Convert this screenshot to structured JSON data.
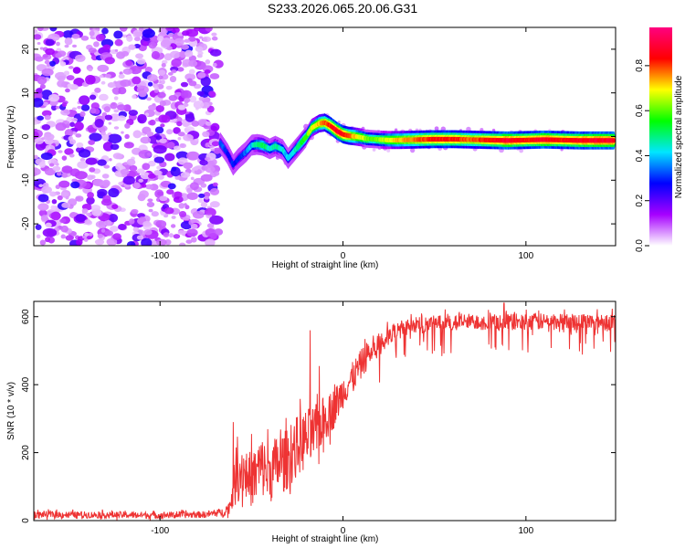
{
  "title": "S233.2026.065.20.06.G31",
  "chart_data": [
    {
      "type": "heatmap",
      "name": "spectrogram",
      "xlabel": "Height of straight line (km)",
      "ylabel": "Frequency (Hz)",
      "xlim": [
        -169,
        149
      ],
      "ylim": [
        -25,
        25
      ],
      "xticks": [
        -100,
        0,
        100
      ],
      "yticks": [
        -20,
        -10,
        0,
        10,
        20
      ],
      "colorbar": {
        "label": "Normalized spectral amplitude",
        "range": [
          0,
          0.97
        ],
        "ticks": [
          0.0,
          0.2,
          0.4,
          0.6,
          0.8
        ],
        "colormap": [
          "#ffffff",
          "#a600ff",
          "#0000ff",
          "#00e6ff",
          "#00ff00",
          "#ffff00",
          "#ff0000",
          "#ff0080"
        ]
      },
      "noise_region": {
        "x_range": [
          -169,
          -68
        ],
        "y_range": [
          -25,
          25
        ],
        "amplitude": "0.05-0.25"
      },
      "frequency_trace": {
        "x": [
          -67,
          -63,
          -60,
          -57,
          -53,
          -50,
          -47,
          -44,
          -40,
          -37,
          -33,
          -30,
          -27,
          -23,
          -20,
          -17,
          -13,
          -10,
          -7,
          -3,
          0,
          3,
          7,
          10,
          13,
          17,
          20,
          25,
          30,
          40,
          50,
          60,
          70,
          80,
          90,
          100,
          110,
          120,
          130,
          140,
          148
        ],
        "y": [
          -1.5,
          -4,
          -6.5,
          -5,
          -3.5,
          -2,
          -1.8,
          -2,
          -2.8,
          -2.2,
          -3,
          -5,
          -3.5,
          -1.5,
          0,
          2,
          3,
          3.2,
          2.5,
          1.2,
          0.5,
          0.2,
          0,
          -0.2,
          -0.5,
          -0.6,
          -0.7,
          -0.8,
          -0.8,
          -0.7,
          -0.6,
          -0.6,
          -0.7,
          -0.8,
          -0.9,
          -0.8,
          -0.7,
          -0.8,
          -0.9,
          -0.9,
          -0.9
        ],
        "amplitude": [
          0.35,
          0.3,
          0.28,
          0.3,
          0.35,
          0.4,
          0.5,
          0.55,
          0.45,
          0.5,
          0.45,
          0.4,
          0.45,
          0.55,
          0.6,
          0.7,
          0.75,
          0.8,
          0.85,
          0.9,
          0.88,
          0.8,
          0.75,
          0.7,
          0.65,
          0.6,
          0.65,
          0.7,
          0.75,
          0.8,
          0.85,
          0.85,
          0.8,
          0.85,
          0.9,
          0.85,
          0.9,
          0.85,
          0.88,
          0.9,
          0.9
        ]
      }
    },
    {
      "type": "line",
      "name": "snr",
      "xlabel": "Height of straight line (km)",
      "ylabel": "SNR (10 * v/v)",
      "xlim": [
        -169,
        149
      ],
      "ylim": [
        0,
        645
      ],
      "xticks": [
        -100,
        0,
        100
      ],
      "yticks": [
        0,
        200,
        400,
        600
      ],
      "color": "#ee3333",
      "series": [
        {
          "name": "SNR envelope",
          "x": [
            -169,
            -100,
            -75,
            -65,
            -62,
            -60,
            -58,
            -55,
            -50,
            -45,
            -40,
            -35,
            -30,
            -25,
            -20,
            -15,
            -10,
            -5,
            0,
            5,
            10,
            15,
            20,
            25,
            30,
            40,
            50,
            60,
            80,
            100,
            120,
            149
          ],
          "y": [
            18,
            16,
            18,
            25,
            40,
            90,
            130,
            150,
            120,
            160,
            140,
            170,
            180,
            220,
            240,
            260,
            300,
            330,
            380,
            420,
            460,
            500,
            520,
            540,
            560,
            575,
            580,
            585,
            585,
            585,
            585,
            585
          ],
          "noise": [
            10,
            10,
            10,
            12,
            20,
            60,
            80,
            80,
            80,
            90,
            90,
            90,
            90,
            90,
            90,
            80,
            70,
            60,
            50,
            45,
            45,
            40,
            35,
            30,
            25,
            25,
            25,
            25,
            25,
            25,
            25,
            25
          ]
        }
      ],
      "spikes": [
        {
          "x": -60,
          "y": 290
        },
        {
          "x": -50,
          "y": 255
        },
        {
          "x": -18,
          "y": 560
        },
        {
          "x": -13,
          "y": 455
        },
        {
          "x": 88,
          "y": 640
        }
      ]
    }
  ]
}
